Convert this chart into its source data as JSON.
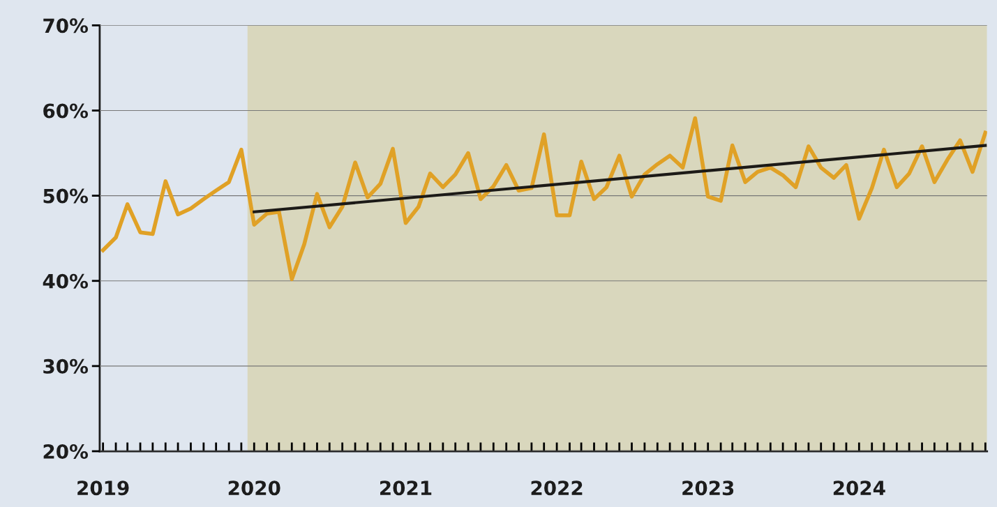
{
  "chart_data": {
    "type": "line",
    "x": [
      "2019-01",
      "2019-02",
      "2019-03",
      "2019-04",
      "2019-05",
      "2019-06",
      "2019-07",
      "2019-08",
      "2019-09",
      "2019-10",
      "2019-11",
      "2019-12",
      "2020-01",
      "2020-02",
      "2020-03",
      "2020-04",
      "2020-05",
      "2020-06",
      "2020-07",
      "2020-08",
      "2020-09",
      "2020-10",
      "2020-11",
      "2020-12",
      "2021-01",
      "2021-02",
      "2021-03",
      "2021-04",
      "2021-05",
      "2021-06",
      "2021-07",
      "2021-08",
      "2021-09",
      "2021-10",
      "2021-11",
      "2021-12",
      "2022-01",
      "2022-02",
      "2022-03",
      "2022-04",
      "2022-05",
      "2022-06",
      "2022-07",
      "2022-08",
      "2022-09",
      "2022-10",
      "2022-11",
      "2022-12",
      "2023-01",
      "2023-02",
      "2023-03",
      "2023-04",
      "2023-05",
      "2023-06",
      "2023-07",
      "2023-08",
      "2023-09",
      "2023-10",
      "2023-11",
      "2023-12",
      "2024-01",
      "2024-02",
      "2024-03",
      "2024-04",
      "2024-05",
      "2024-06",
      "2024-07",
      "2024-08",
      "2024-09",
      "2024-10",
      "2024-11"
    ],
    "series": [
      {
        "color": "#e0a126",
        "values": [
          43.6,
          45.1,
          49.0,
          45.7,
          45.5,
          51.7,
          47.8,
          48.5,
          49.6,
          50.6,
          51.6,
          55.4,
          46.6,
          47.9,
          48.1,
          40.2,
          44.3,
          50.2,
          46.3,
          48.7,
          53.9,
          49.8,
          51.4,
          55.5,
          46.8,
          48.7,
          52.6,
          51.0,
          52.5,
          55.0,
          49.6,
          51.1,
          53.6,
          50.6,
          50.9,
          57.2,
          47.7,
          47.7,
          54.0,
          49.6,
          51.0,
          54.7,
          49.9,
          52.5,
          53.7,
          54.7,
          53.3,
          59.1,
          49.9,
          49.4,
          55.9,
          51.6,
          52.8,
          53.3,
          52.4,
          51.0,
          55.8,
          53.3,
          52.1,
          53.6,
          47.3,
          50.9,
          55.4,
          51.0,
          52.6,
          55.8,
          51.6,
          54.2,
          56.5,
          52.8,
          57.4
        ]
      },
      {
        "type": "line",
        "color": "#1c1a17",
        "x": [
          "2020-01",
          "2024-11"
        ],
        "values": [
          48.1,
          55.9
        ]
      }
    ],
    "xlim": [
      "2018-12-24",
      "2024-11-05"
    ],
    "xticks": [
      {
        "value": "2019-01",
        "label": "2019"
      },
      {
        "value": "2020-01",
        "label": "2020"
      },
      {
        "value": "2021-01",
        "label": "2021"
      },
      {
        "value": "2022-01",
        "label": "2022"
      },
      {
        "value": "2023-01",
        "label": "2023"
      },
      {
        "value": "2024-01",
        "label": "2024"
      }
    ],
    "ylim": [
      20,
      70
    ],
    "yticks": [
      {
        "value": 20,
        "label": "20%"
      },
      {
        "value": 30,
        "label": "30%"
      },
      {
        "value": 40,
        "label": "40%"
      },
      {
        "value": 50,
        "label": "50%"
      },
      {
        "value": 60,
        "label": "60%"
      },
      {
        "value": 70,
        "label": "70%"
      }
    ],
    "bands": [
      {
        "axis": "x",
        "from": "2019-12-16",
        "to": "2024-11-05",
        "color": "#d9d7bd"
      }
    ],
    "grid": "y",
    "marker": "none",
    "line_style": "solid"
  }
}
